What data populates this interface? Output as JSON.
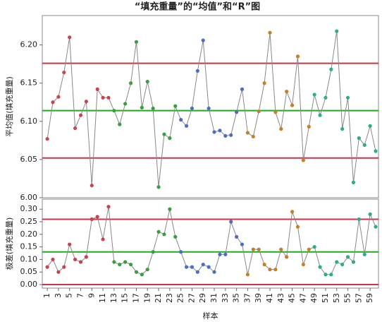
{
  "title": "“填充重量”的“均值”和“R”图",
  "chart_data": [
    {
      "type": "line",
      "y_label": "平均值(填充重量)",
      "x": [
        1,
        2,
        3,
        4,
        5,
        6,
        7,
        8,
        9,
        10,
        11,
        12,
        13,
        14,
        15,
        16,
        17,
        18,
        19,
        20,
        21,
        22,
        23,
        24,
        25,
        26,
        27,
        28,
        29,
        30,
        31,
        32,
        33,
        34,
        35,
        36,
        37,
        38,
        39,
        40,
        41,
        42,
        43,
        44,
        45,
        46,
        47,
        48,
        49,
        50,
        51,
        52,
        53,
        54,
        55,
        56,
        57,
        58,
        59,
        60
      ],
      "xlim": [
        0.1,
        60.5
      ],
      "ylim": [
        6.0,
        6.2385
      ],
      "yticks": [
        {
          "value": 6.0,
          "label": "6.00"
        },
        {
          "value": 6.05,
          "label": "6.05"
        },
        {
          "value": 6.1,
          "label": "6.10"
        },
        {
          "value": 6.15,
          "label": "6.15"
        },
        {
          "value": 6.2,
          "label": "6.20"
        }
      ],
      "line_color": "#888888",
      "series": [
        {
          "values": [
            6.077,
            6.125,
            6.132,
            6.164,
            6.21,
            6.091,
            6.108,
            6.126,
            6.016,
            6.142,
            6.131,
            6.131,
            6.114,
            6.096,
            6.123,
            6.15,
            6.204,
            6.118,
            6.152,
            6.117,
            6.014,
            6.083,
            6.078,
            6.12,
            6.102,
            6.094,
            6.117,
            6.166,
            6.206,
            6.117,
            6.086,
            6.088,
            6.081,
            6.082,
            6.112,
            6.142,
            6.085,
            6.08,
            6.113,
            6.15,
            6.216,
            6.112,
            6.09,
            6.139,
            6.121,
            6.185,
            6.049,
            6.093,
            6.135,
            6.108,
            6.131,
            6.168,
            6.218,
            6.09,
            6.131,
            6.02,
            6.078,
            6.069,
            6.094,
            6.061
          ]
        }
      ],
      "hlines": [
        {
          "value": 6.176,
          "color": "#cc3344"
        },
        {
          "value": 6.114,
          "color": "#22aa22"
        },
        {
          "value": 6.052,
          "color": "#cc3344"
        }
      ]
    },
    {
      "type": "line",
      "y_label": "极差(填充重量)",
      "x_label": "样本",
      "x": [
        1,
        2,
        3,
        4,
        5,
        6,
        7,
        8,
        9,
        10,
        11,
        12,
        13,
        14,
        15,
        16,
        17,
        18,
        19,
        20,
        21,
        22,
        23,
        24,
        25,
        26,
        27,
        28,
        29,
        30,
        31,
        32,
        33,
        34,
        35,
        36,
        37,
        38,
        39,
        40,
        41,
        42,
        43,
        44,
        45,
        46,
        47,
        48,
        49,
        50,
        51,
        52,
        53,
        54,
        55,
        56,
        57,
        58,
        59,
        60
      ],
      "xlim": [
        0.1,
        60.5
      ],
      "xticks": [
        1,
        3,
        5,
        7,
        9,
        11,
        13,
        15,
        17,
        19,
        21,
        23,
        25,
        27,
        29,
        31,
        33,
        35,
        37,
        39,
        41,
        43,
        45,
        47,
        49,
        51,
        53,
        55,
        57,
        59
      ],
      "ylim": [
        -0.014,
        0.34
      ],
      "yticks": [
        {
          "value": 0,
          "label": "0.00"
        },
        {
          "value": 0.05,
          "label": "0.05"
        },
        {
          "value": 0.1,
          "label": "0.10"
        },
        {
          "value": 0.15,
          "label": "0.15"
        },
        {
          "value": 0.2,
          "label": "0.20"
        },
        {
          "value": 0.25,
          "label": "0.25"
        },
        {
          "value": 0.3,
          "label": "0.30"
        }
      ],
      "line_color": "#888888",
      "series": [
        {
          "values": [
            0.07,
            0.1,
            0.05,
            0.07,
            0.16,
            0.1,
            0.09,
            0.11,
            0.26,
            0.27,
            0.18,
            0.31,
            0.09,
            0.08,
            0.09,
            0.08,
            0.05,
            0.04,
            0.06,
            0.13,
            0.21,
            0.2,
            0.3,
            0.19,
            0.13,
            0.07,
            0.07,
            0.05,
            0.08,
            0.07,
            0.05,
            0.12,
            0.12,
            0.25,
            0.19,
            0.16,
            0.04,
            0.14,
            0.14,
            0.08,
            0.06,
            0.06,
            0.14,
            0.11,
            0.29,
            0.23,
            0.08,
            0.14,
            0.15,
            0.07,
            0.04,
            0.04,
            0.09,
            0.08,
            0.11,
            0.09,
            0.26,
            0.12,
            0.28,
            0.23
          ]
        }
      ],
      "hlines": [
        {
          "value": 0.26,
          "color": "#cc3344"
        },
        {
          "value": 0.13,
          "color": "#22aa22"
        },
        {
          "value": 0,
          "color": "#cc3344"
        }
      ]
    }
  ],
  "marker_colors": [
    "#c64450",
    "#c64450",
    "#c64450",
    "#c64450",
    "#c64450",
    "#c64450",
    "#c64450",
    "#c64450",
    "#c64450",
    "#c64450",
    "#c64450",
    "#c64450",
    "#3a9e3e",
    "#3a9e3e",
    "#3a9e3e",
    "#3a9e3e",
    "#3a9e3e",
    "#3a9e3e",
    "#3a9e3e",
    "#3a9e3e",
    "#3a9e3e",
    "#3a9e3e",
    "#3a9e3e",
    "#3a9e3e",
    "#4a6fc1",
    "#4a6fc1",
    "#4a6fc1",
    "#4a6fc1",
    "#4a6fc1",
    "#4a6fc1",
    "#4a6fc1",
    "#4a6fc1",
    "#4a6fc1",
    "#4a6fc1",
    "#4a6fc1",
    "#4a6fc1",
    "#c47f2b",
    "#c47f2b",
    "#c47f2b",
    "#c47f2b",
    "#c47f2b",
    "#c47f2b",
    "#c47f2b",
    "#c47f2b",
    "#c47f2b",
    "#c47f2b",
    "#c47f2b",
    "#c47f2b",
    "#2bad87",
    "#2bad87",
    "#2bad87",
    "#2bad87",
    "#2bad87",
    "#2bad87",
    "#2bad87",
    "#2bad87",
    "#2bad87",
    "#2bad87",
    "#2bad87",
    "#2bad87"
  ]
}
